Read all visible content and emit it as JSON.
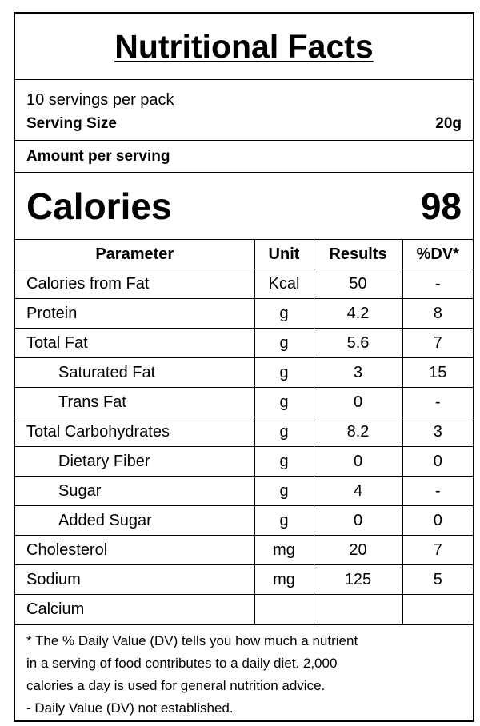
{
  "title": "Nutritional Facts",
  "servings_per_pack": "10 servings per pack",
  "serving_size": {
    "label": "Serving Size",
    "value": "20g"
  },
  "amount_per_serving": "Amount per serving",
  "calories": {
    "label": "Calories",
    "value": "98"
  },
  "table": {
    "headers": [
      "Parameter",
      "Unit",
      "Results",
      "%DV*"
    ],
    "rows": [
      {
        "name": "Calories from Fat",
        "unit": "Kcal",
        "result": "50",
        "dv": "-",
        "indent": false
      },
      {
        "name": "Protein",
        "unit": "g",
        "result": "4.2",
        "dv": "8",
        "indent": false
      },
      {
        "name": "Total Fat",
        "unit": "g",
        "result": "5.6",
        "dv": "7",
        "indent": false
      },
      {
        "name": "Saturated Fat",
        "unit": "g",
        "result": "3",
        "dv": "15",
        "indent": true
      },
      {
        "name": "Trans Fat",
        "unit": "g",
        "result": "0",
        "dv": "-",
        "indent": true
      },
      {
        "name": "Total Carbohydrates",
        "unit": "g",
        "result": "8.2",
        "dv": "3",
        "indent": false
      },
      {
        "name": "Dietary Fiber",
        "unit": "g",
        "result": "0",
        "dv": "0",
        "indent": true
      },
      {
        "name": "Sugar",
        "unit": "g",
        "result": "4",
        "dv": "-",
        "indent": true
      },
      {
        "name": "Added Sugar",
        "unit": "g",
        "result": "0",
        "dv": "0",
        "indent": true
      },
      {
        "name": "Cholesterol",
        "unit": "mg",
        "result": "20",
        "dv": "7",
        "indent": false
      },
      {
        "name": "Sodium",
        "unit": "mg",
        "result": "125",
        "dv": "5",
        "indent": false
      },
      {
        "name": "Calcium",
        "unit": "",
        "result": "",
        "dv": "",
        "indent": false
      }
    ]
  },
  "footnote": {
    "line1": "* The % Daily Value (DV) tells you how much a nutrient",
    "line2": "in a serving of food contributes to a daily diet. 2,000",
    "line3": "calories a day is used for general nutrition advice.",
    "line4": "- Daily Value (DV) not established."
  }
}
